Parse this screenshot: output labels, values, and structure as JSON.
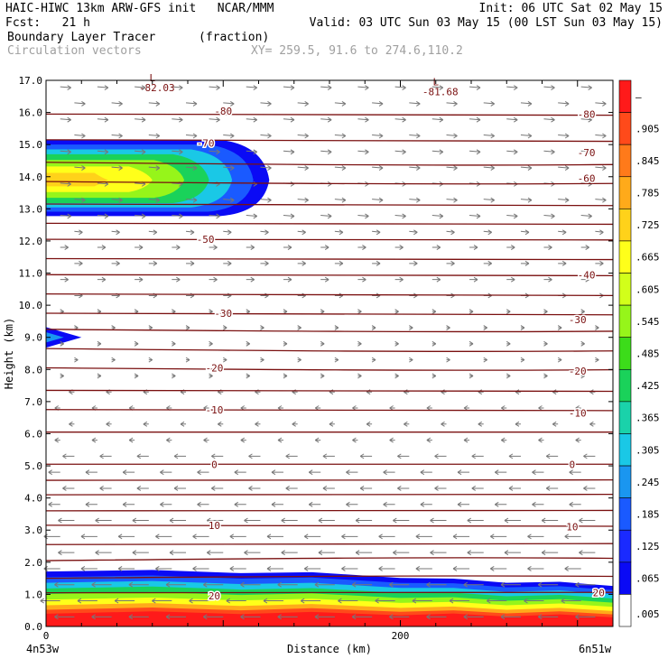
{
  "header": {
    "line1_left": "HAIC-HIWC 13km ARW-GFS init   NCAR/MMM",
    "line1_right": "Init: 06 UTC Sat 02 May 15",
    "line2_left": "Fcst:   21 h",
    "line2_right": "Valid: 03 UTC Sun 03 May 15 (00 LST Sun 03 May 15)",
    "field": "Boundary Layer Tracer",
    "units": "(fraction)",
    "vectors": "Circulation vectors",
    "xy": "XY= 259.5, 91.6 to 274.6,110.2"
  },
  "chart_data": {
    "type": "heatmap",
    "xlabel": "Distance (km)",
    "ylabel": "Height (km)",
    "xlim": [
      0,
      320
    ],
    "ylim": [
      0,
      17
    ],
    "x_ticks": [
      "0",
      "200"
    ],
    "x_end_labels": [
      "4n53w",
      "6n51w"
    ],
    "y_ticks": [
      "0.0",
      "1.0",
      "2.0",
      "3.0",
      "4.0",
      "5.0",
      "6.0",
      "7.0",
      "8.0",
      "9.0",
      "10.0",
      "11.0",
      "12.0",
      "13.0",
      "14.0",
      "15.0",
      "16.0",
      "17.0"
    ],
    "colorbar": {
      "labels": [
        "–",
        ".905",
        ".845",
        ".785",
        ".725",
        ".665",
        ".605",
        ".545",
        ".485",
        ".425",
        ".365",
        ".305",
        ".245",
        ".185",
        ".125",
        ".065",
        ".005"
      ],
      "colors": [
        "#ff1a1a",
        "#ff4a1a",
        "#ff7a1a",
        "#ffaa1a",
        "#ffd21a",
        "#ffff1a",
        "#d2ff1a",
        "#96f51a",
        "#3cdc1a",
        "#1ad25a",
        "#1ad2aa",
        "#1ac8e6",
        "#1a96f0",
        "#1a5aff",
        "#1a2aff",
        "#0a0af5",
        "#ffffff"
      ]
    },
    "isotherms": [
      {
        "value": -80,
        "label": "-80"
      },
      {
        "value": -70,
        "label": "-70"
      },
      {
        "value": -60,
        "label": "-60"
      },
      {
        "value": -50,
        "label": "-50"
      },
      {
        "value": -40,
        "label": "-40"
      },
      {
        "value": -30,
        "label": "-30"
      },
      {
        "value": -20,
        "label": "-20"
      },
      {
        "value": -10,
        "label": "-10"
      },
      {
        "value": 0,
        "label": "0"
      },
      {
        "value": 10,
        "label": "10"
      },
      {
        "value": 20,
        "label": "20"
      }
    ],
    "minima": [
      {
        "symbol": "L",
        "value": "-82.03"
      },
      {
        "symbol": "L",
        "value": "-81.68"
      }
    ]
  }
}
